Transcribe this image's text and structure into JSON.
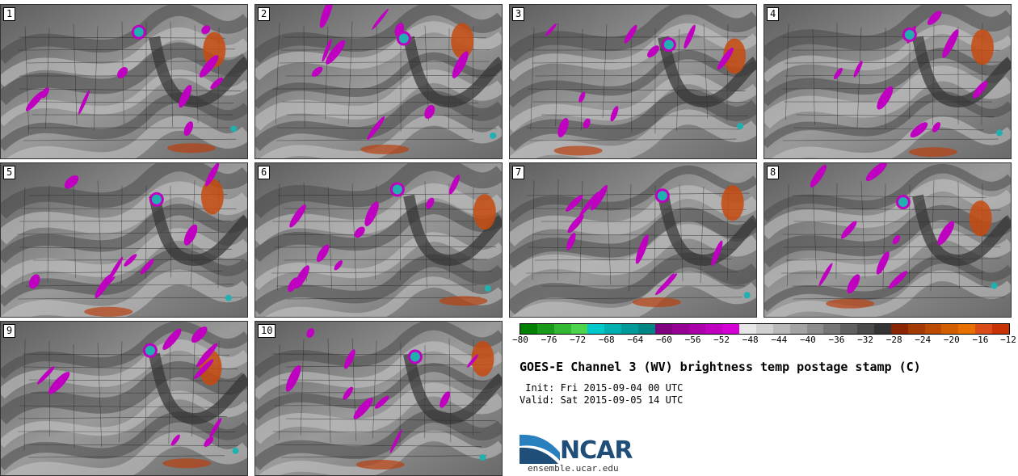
{
  "panels": [
    {
      "label": "1"
    },
    {
      "label": "2"
    },
    {
      "label": "3"
    },
    {
      "label": "4"
    },
    {
      "label": "5"
    },
    {
      "label": "6"
    },
    {
      "label": "7"
    },
    {
      "label": "8"
    },
    {
      "label": "9"
    },
    {
      "label": "10"
    }
  ],
  "colorbar": {
    "colors": [
      "#008000",
      "#1a9a1a",
      "#33b833",
      "#4dd44d",
      "#00c8c8",
      "#00b0b0",
      "#009a9a",
      "#008585",
      "#800080",
      "#950095",
      "#aa00aa",
      "#bf00bf",
      "#d400d4",
      "#e6e6e6",
      "#d0d0d0",
      "#b9b9b9",
      "#a3a3a3",
      "#8c8c8c",
      "#767676",
      "#606060",
      "#4a4a4a",
      "#343434",
      "#8b2500",
      "#a33a00",
      "#bb4b00",
      "#d35e00",
      "#e87000",
      "#d94c1a",
      "#c83200"
    ],
    "ticks": [
      "−80",
      "−76",
      "−72",
      "−68",
      "−64",
      "−60",
      "−56",
      "−52",
      "−48",
      "−44",
      "−40",
      "−36",
      "−32",
      "−28",
      "−24",
      "−20",
      "−16",
      "−12"
    ]
  },
  "title": "GOES-E Channel 3 (WV) brightness temp postage stamp (C)",
  "init": " Init: Fri 2015-09-04 00 UTC",
  "valid": "Valid: Sat 2015-09-05 14 UTC",
  "logo": {
    "text": "NCAR",
    "site": "ensemble.ucar.edu",
    "color": "#1f4e79",
    "accent": "#2a7fbf"
  }
}
